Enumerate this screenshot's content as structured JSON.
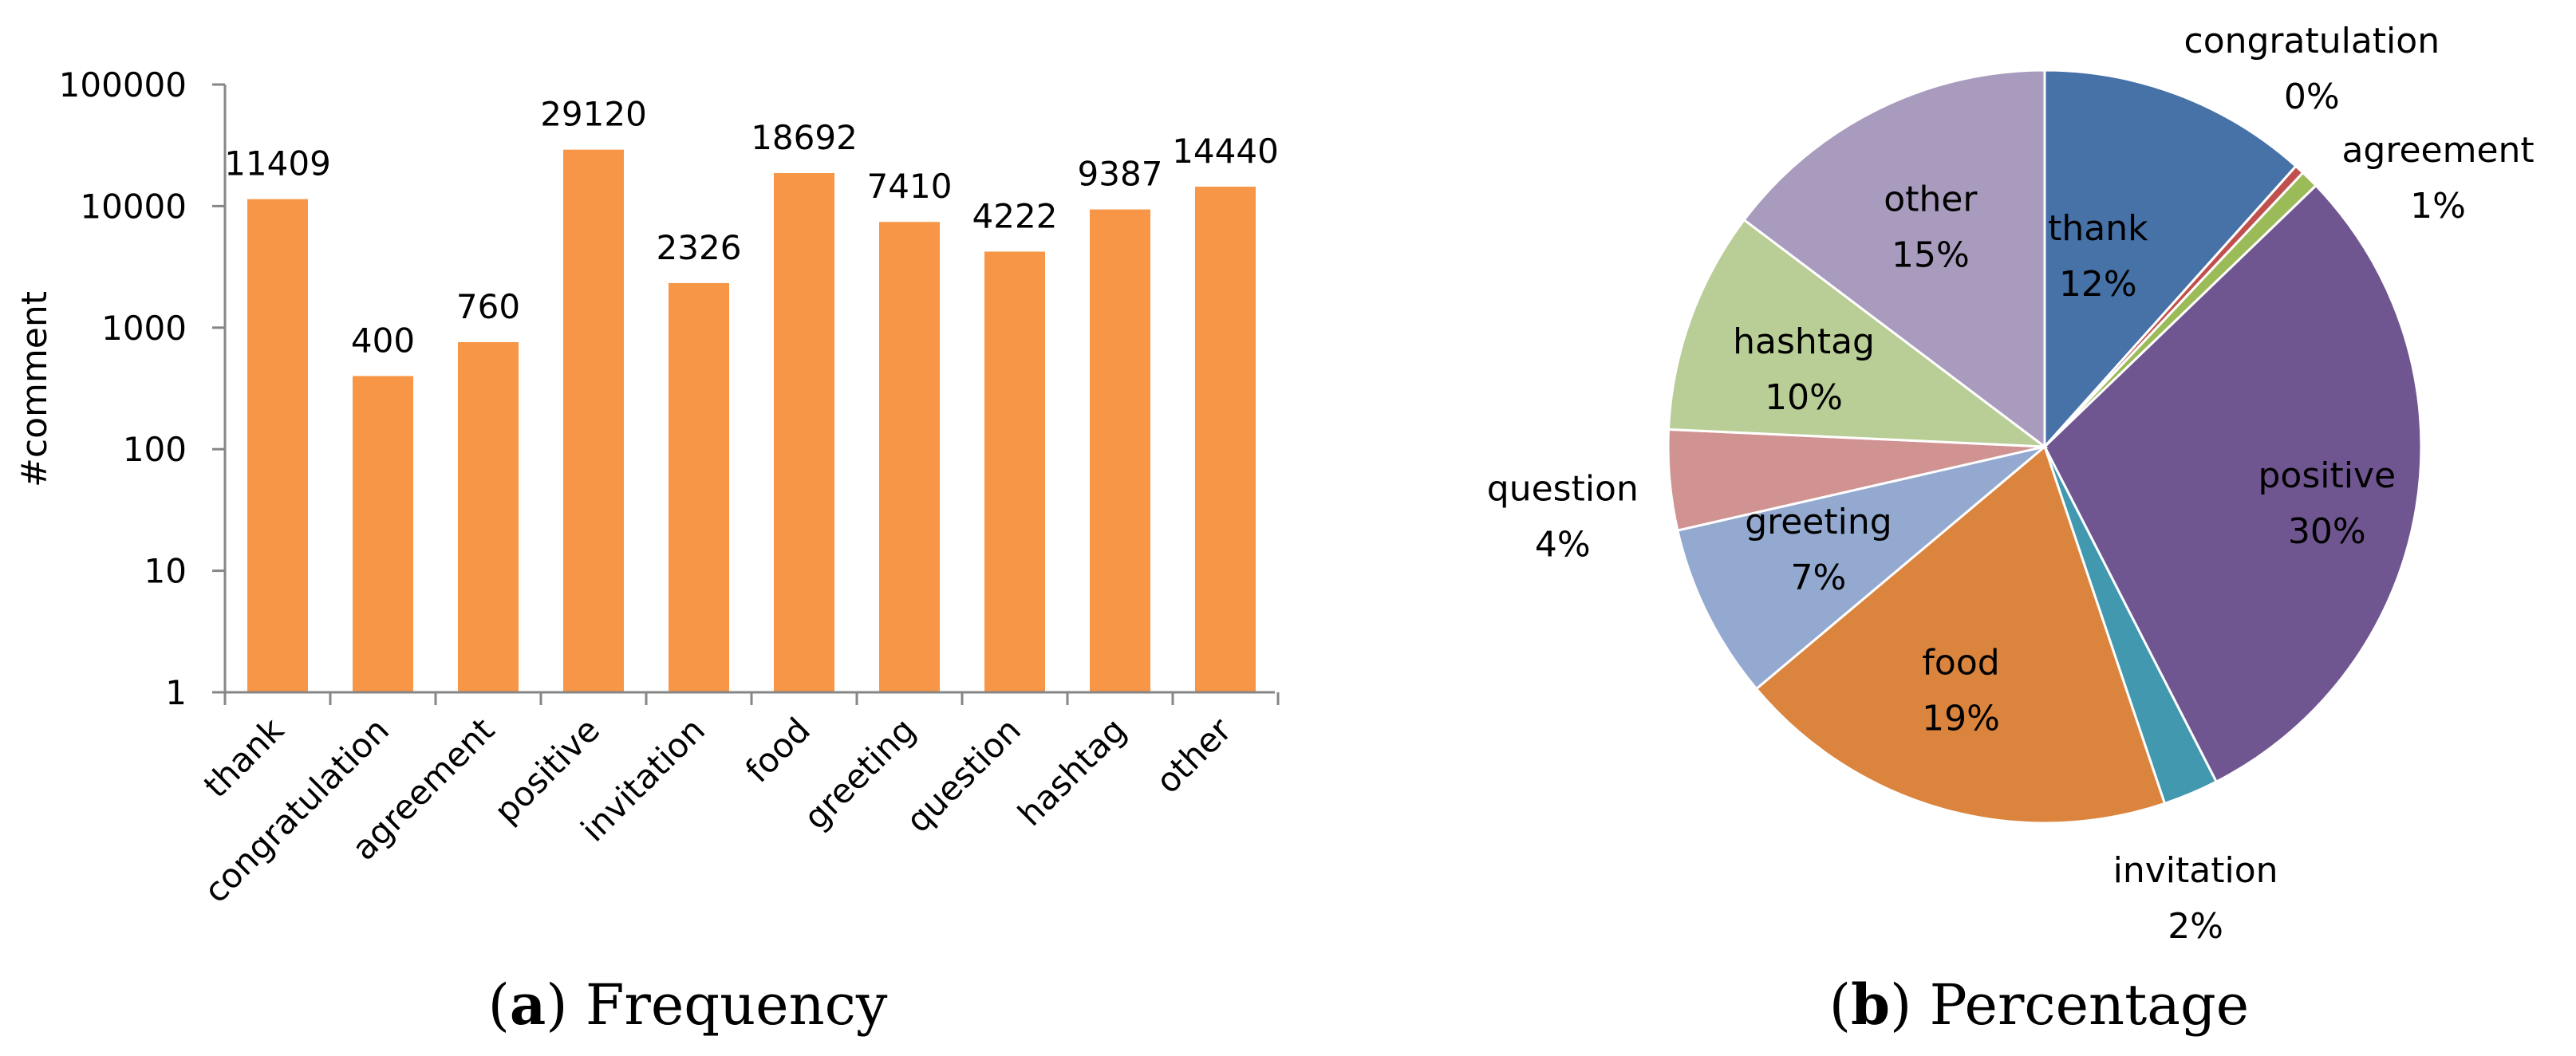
{
  "chart_data": [
    {
      "type": "bar",
      "caption_letter": "a",
      "caption_text": "Frequency",
      "ylabel": "#comment",
      "yscale": "log",
      "ylim": [
        1,
        100000
      ],
      "yticks": [
        "1",
        "10",
        "100",
        "1000",
        "10000",
        "100000"
      ],
      "grid": false,
      "categories": [
        "thank",
        "congratulation",
        "agreement",
        "positive",
        "invitation",
        "food",
        "greeting",
        "question",
        "hashtag",
        "other"
      ],
      "values": [
        11409,
        400,
        760,
        29120,
        2326,
        18692,
        7410,
        4222,
        9387,
        14440
      ],
      "data_labels": [
        "11409",
        "400",
        "760",
        "29120",
        "2326",
        "18692",
        "7410",
        "4222",
        "9387",
        "14440"
      ],
      "color": "#F79646"
    },
    {
      "type": "pie",
      "caption_letter": "b",
      "caption_text": "Percentage",
      "labels": [
        "thank",
        "congratulation",
        "agreement",
        "positive",
        "invitation",
        "food",
        "greeting",
        "question",
        "hashtag",
        "other"
      ],
      "values": [
        11409,
        400,
        760,
        29120,
        2326,
        18692,
        7410,
        4222,
        9387,
        14440
      ],
      "percent_labels": [
        "12%",
        "0%",
        "1%",
        "30%",
        "2%",
        "19%",
        "7%",
        "4%",
        "10%",
        "15%"
      ],
      "colors": [
        "#4672A8",
        "#C0504D",
        "#9BBB59",
        "#705690",
        "#4198AF",
        "#DB843D",
        "#93A9D0",
        "#D09392",
        "#B9CD96",
        "#A99BBD"
      ]
    }
  ]
}
